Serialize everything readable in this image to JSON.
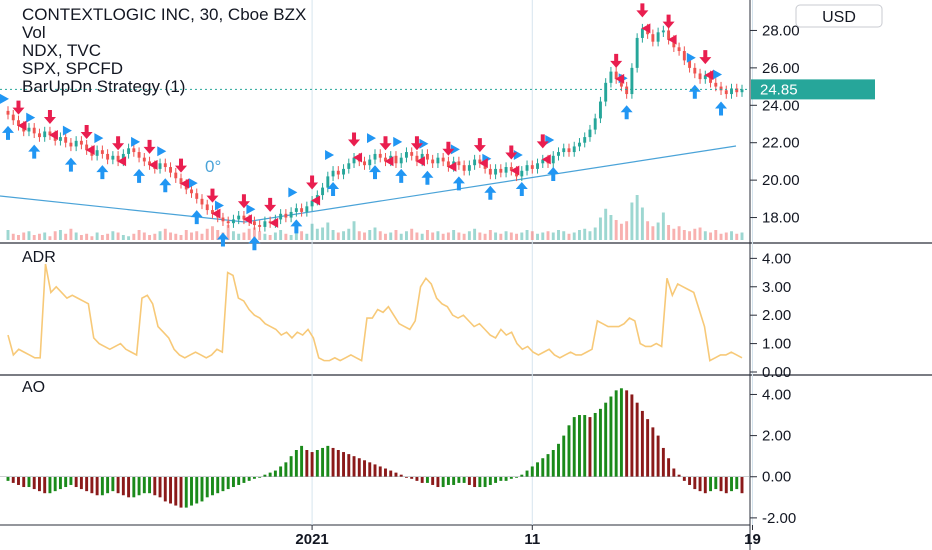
{
  "header": {
    "title": "CONTEXTLOGIC INC, 30, Cboe BZX",
    "legend_lines": [
      "Vol",
      "NDX, TVC",
      "SPX, SPCFD",
      "BarUpDn Strategy (1)"
    ],
    "currency": "USD",
    "drawing_label": "0°"
  },
  "colors": {
    "up": "#26a69a",
    "down": "#ef5350",
    "ao_up": "#1b8a1b",
    "ao_down": "#8b1a1a",
    "adr": "#f7c978",
    "trend": "#4aa3d8",
    "signal_up": "#2196f3",
    "signal_down": "#e91e4f",
    "price_badge": "#26a69a"
  },
  "chart_data": [
    {
      "type": "candlestick",
      "name": "price",
      "ylim": [
        16.8,
        29.2
      ],
      "yticks": [
        "28.00",
        "26.00",
        "24.00",
        "22.00",
        "20.00",
        "18.00"
      ],
      "ytick_values": [
        28,
        26,
        24,
        22,
        20,
        18
      ],
      "last_price": "24.85",
      "last_value": 24.85,
      "close": [
        23.5,
        23.2,
        22.9,
        22.6,
        22.8,
        22.5,
        22.3,
        22.6,
        22.4,
        22.1,
        22.3,
        22.0,
        21.8,
        22.1,
        21.9,
        21.6,
        21.3,
        21.6,
        21.4,
        21.1,
        21.3,
        21.0,
        21.4,
        21.7,
        21.5,
        21.2,
        21.0,
        20.8,
        20.6,
        20.9,
        20.7,
        20.4,
        20.1,
        19.8,
        19.5,
        19.3,
        19.0,
        18.7,
        18.4,
        18.2,
        18.0,
        17.8,
        17.7,
        17.9,
        18.1,
        17.9,
        17.8,
        17.6,
        17.5,
        17.8,
        17.7,
        17.9,
        18.2,
        18.0,
        18.3,
        18.5,
        18.3,
        18.6,
        18.9,
        19.2,
        19.6,
        20.2,
        20.5,
        20.3,
        20.6,
        20.9,
        21.2,
        21.0,
        20.8,
        21.1,
        21.4,
        21.2,
        21.0,
        21.3,
        20.9,
        21.2,
        21.5,
        21.3,
        21.0,
        21.4,
        21.1,
        20.9,
        21.2,
        21.0,
        20.7,
        21.0,
        20.8,
        20.5,
        20.8,
        21.1,
        20.9,
        20.6,
        20.3,
        20.6,
        20.4,
        20.7,
        20.5,
        20.2,
        20.5,
        20.8,
        20.6,
        20.9,
        21.1,
        20.9,
        21.3,
        21.5,
        21.7,
        21.5,
        21.8,
        22.0,
        22.3,
        22.7,
        23.3,
        24.2,
        25.2,
        25.8,
        25.4,
        25.0,
        24.6,
        26.0,
        27.6,
        28.1,
        27.8,
        27.4,
        27.9,
        28.0,
        27.5,
        27.1,
        26.9,
        26.4,
        26.0,
        25.7,
        25.4,
        25.6,
        25.2,
        25.0,
        24.8,
        24.6,
        24.9,
        24.7,
        24.85
      ],
      "volume": [
        0.8,
        0.5,
        0.4,
        0.6,
        0.7,
        0.4,
        0.5,
        0.6,
        0.3,
        0.7,
        0.8,
        0.5,
        0.9,
        0.6,
        0.4,
        0.5,
        0.3,
        0.6,
        0.4,
        0.5,
        0.7,
        0.6,
        0.4,
        0.3,
        0.5,
        0.8,
        0.6,
        0.4,
        0.5,
        0.7,
        0.9,
        0.6,
        0.5,
        0.4,
        0.8,
        0.6,
        0.7,
        0.5,
        0.9,
        1.1,
        0.8,
        0.6,
        1.2,
        0.7,
        0.5,
        0.6,
        0.9,
        1.0,
        0.7,
        0.5,
        0.4,
        0.6,
        0.8,
        0.5,
        0.4,
        0.6,
        0.7,
        0.5,
        1.3,
        0.9,
        1.0,
        1.4,
        0.8,
        0.6,
        0.7,
        0.9,
        1.5,
        0.7,
        0.6,
        0.8,
        1.0,
        0.7,
        0.5,
        0.6,
        0.8,
        0.5,
        0.7,
        0.9,
        0.6,
        0.5,
        0.8,
        0.6,
        0.7,
        0.5,
        0.6,
        0.8,
        0.6,
        0.5,
        0.7,
        0.9,
        0.6,
        0.5,
        0.8,
        0.6,
        0.5,
        0.7,
        0.6,
        0.5,
        0.6,
        0.8,
        0.7,
        0.5,
        0.6,
        0.7,
        0.6,
        0.8,
        0.7,
        0.5,
        0.6,
        0.8,
        0.9,
        0.7,
        1.0,
        1.8,
        2.5,
        2.0,
        1.6,
        1.3,
        1.5,
        3.0,
        3.6,
        2.6,
        1.5,
        1.1,
        1.4,
        2.2,
        1.2,
        0.9,
        1.1,
        0.8,
        0.7,
        0.9,
        1.0,
        0.7,
        0.6,
        0.8,
        0.5,
        0.6,
        0.7,
        0.5,
        0.6
      ],
      "buy_signals": [
        0,
        5,
        12,
        18,
        25,
        30,
        36,
        41,
        47,
        55,
        62,
        70,
        75,
        80,
        86,
        92,
        98,
        104,
        118,
        131,
        136
      ],
      "sell_signals": [
        2,
        8,
        15,
        21,
        27,
        33,
        39,
        45,
        50,
        58,
        66,
        72,
        78,
        84,
        90,
        96,
        102,
        116,
        121,
        126,
        133
      ]
    },
    {
      "type": "line",
      "name": "ADR",
      "label": "ADR",
      "ylim": [
        0,
        4.4
      ],
      "yticks": [
        "4.00",
        "3.00",
        "2.00",
        "1.00",
        "0.00"
      ],
      "ytick_values": [
        4,
        3,
        2,
        1,
        0
      ],
      "values": [
        1.3,
        0.6,
        0.8,
        0.7,
        0.6,
        0.5,
        0.5,
        3.8,
        2.8,
        3.0,
        2.8,
        2.6,
        2.7,
        2.6,
        2.5,
        2.4,
        1.2,
        1.0,
        0.9,
        0.8,
        0.9,
        1.0,
        0.8,
        0.7,
        0.6,
        2.6,
        2.7,
        2.4,
        1.6,
        1.4,
        1.2,
        0.8,
        0.6,
        0.5,
        0.6,
        0.7,
        0.6,
        0.5,
        0.6,
        0.8,
        0.7,
        3.5,
        3.4,
        2.6,
        2.5,
        2.2,
        2.0,
        1.9,
        1.7,
        1.6,
        1.5,
        1.3,
        1.4,
        1.2,
        1.4,
        1.3,
        1.5,
        1.2,
        0.5,
        0.4,
        0.4,
        0.5,
        0.4,
        0.5,
        0.6,
        0.5,
        0.4,
        1.9,
        1.9,
        2.2,
        2.1,
        2.3,
        2.0,
        1.7,
        1.6,
        1.5,
        1.8,
        3.0,
        3.3,
        3.1,
        2.6,
        2.4,
        2.3,
        2.0,
        1.9,
        2.0,
        1.8,
        1.6,
        1.7,
        1.5,
        1.3,
        1.2,
        1.5,
        1.3,
        1.4,
        1.0,
        0.8,
        0.9,
        0.7,
        0.6,
        0.7,
        0.8,
        0.6,
        0.5,
        0.6,
        0.7,
        0.6,
        0.6,
        0.7,
        0.8,
        1.8,
        1.7,
        1.6,
        1.6,
        1.6,
        1.7,
        1.9,
        1.8,
        1.0,
        0.9,
        0.9,
        1.0,
        0.9,
        3.3,
        2.7,
        3.1,
        3.0,
        2.9,
        2.8,
        2.2,
        1.6,
        0.4,
        0.5,
        0.6,
        0.6,
        0.7,
        0.6,
        0.5
      ]
    },
    {
      "type": "bar",
      "name": "AO",
      "label": "AO",
      "ylim": [
        -2.2,
        4.8
      ],
      "yticks": [
        "4.00",
        "2.00",
        "0.00",
        "-2.00"
      ],
      "ytick_values": [
        4,
        2,
        0,
        -2
      ],
      "values": [
        -0.2,
        -0.3,
        -0.4,
        -0.5,
        -0.5,
        -0.6,
        -0.7,
        -0.8,
        -0.8,
        -0.7,
        -0.6,
        -0.5,
        -0.4,
        -0.5,
        -0.6,
        -0.7,
        -0.8,
        -0.9,
        -0.9,
        -0.8,
        -0.7,
        -0.8,
        -0.9,
        -1.0,
        -1.0,
        -0.9,
        -0.8,
        -0.8,
        -0.9,
        -1.0,
        -1.2,
        -1.3,
        -1.4,
        -1.5,
        -1.5,
        -1.4,
        -1.3,
        -1.2,
        -1.0,
        -0.9,
        -0.8,
        -0.7,
        -0.6,
        -0.5,
        -0.4,
        -0.3,
        -0.2,
        -0.1,
        0.0,
        0.1,
        0.2,
        0.3,
        0.5,
        0.7,
        1.0,
        1.3,
        1.5,
        1.3,
        1.2,
        1.3,
        1.4,
        1.5,
        1.4,
        1.3,
        1.2,
        1.1,
        1.0,
        0.9,
        0.8,
        0.7,
        0.6,
        0.5,
        0.4,
        0.3,
        0.2,
        0.1,
        0.0,
        -0.1,
        -0.2,
        -0.3,
        -0.3,
        -0.4,
        -0.5,
        -0.5,
        -0.4,
        -0.4,
        -0.3,
        -0.3,
        -0.4,
        -0.5,
        -0.5,
        -0.5,
        -0.4,
        -0.3,
        -0.2,
        -0.2,
        -0.1,
        0.0,
        0.1,
        0.3,
        0.5,
        0.7,
        0.9,
        1.1,
        1.3,
        1.6,
        2.0,
        2.5,
        2.9,
        3.0,
        3.0,
        2.9,
        3.1,
        3.3,
        3.6,
        3.9,
        4.2,
        4.3,
        4.2,
        4.0,
        3.6,
        3.2,
        2.8,
        2.4,
        2.0,
        1.4,
        0.9,
        0.4,
        0.1,
        -0.2,
        -0.4,
        -0.6,
        -0.7,
        -0.8,
        -0.7,
        -0.6,
        -0.7,
        -0.8,
        -0.7,
        -0.6,
        -0.8
      ]
    }
  ],
  "x_axis": {
    "labels": [
      {
        "text": "2021",
        "idx": 58
      },
      {
        "text": "11",
        "idx": 100
      },
      {
        "text": "19",
        "idx": 142
      }
    ]
  }
}
